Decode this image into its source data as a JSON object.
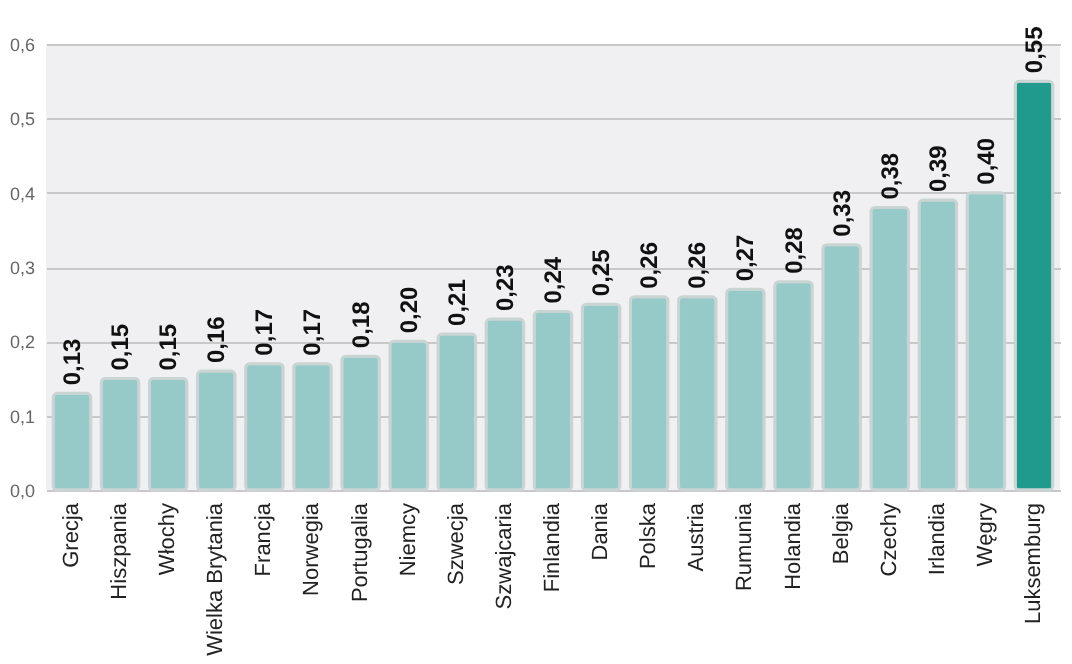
{
  "chart_data": {
    "type": "bar",
    "categories": [
      "Grecja",
      "Hiszpania",
      "Włochy",
      "Wielka Brytania",
      "Francja",
      "Norwegia",
      "Portugalia",
      "Niemcy",
      "Szwecja",
      "Szwajcaria",
      "Finlandia",
      "Dania",
      "Polska",
      "Austria",
      "Rumunia",
      "Holandia",
      "Belgia",
      "Czechy",
      "Irlandia",
      "Węgry",
      "Luksemburg"
    ],
    "values": [
      0.13,
      0.15,
      0.15,
      0.16,
      0.17,
      0.17,
      0.18,
      0.2,
      0.21,
      0.23,
      0.24,
      0.25,
      0.26,
      0.26,
      0.27,
      0.28,
      0.33,
      0.38,
      0.39,
      0.4,
      0.55
    ],
    "colors": [
      "#96cac8",
      "#96cac8",
      "#96cac8",
      "#96cac8",
      "#96cac8",
      "#96cac8",
      "#96cac8",
      "#96cac8",
      "#96cac8",
      "#96cac8",
      "#96cac8",
      "#96cac8",
      "#96cac8",
      "#96cac8",
      "#96cac8",
      "#96cac8",
      "#96cac8",
      "#96cac8",
      "#96cac8",
      "#96cac8",
      "#1f9a8c"
    ],
    "value_labels": [
      "0,13",
      "0,15",
      "0,15",
      "0,16",
      "0,17",
      "0,17",
      "0,18",
      "0,20",
      "0,21",
      "0,23",
      "0,24",
      "0,25",
      "0,26",
      "0,26",
      "0,27",
      "0,28",
      "0,33",
      "0,38",
      "0,39",
      "0,40",
      "0,55"
    ],
    "ylim": [
      0,
      0.6
    ],
    "yticks": [
      {
        "value": 0,
        "label": "0,0"
      },
      {
        "value": 0.1,
        "label": "0,1"
      },
      {
        "value": 0.2,
        "label": "0,2"
      },
      {
        "value": 0.3,
        "label": "0,3"
      },
      {
        "value": 0.4,
        "label": "0,4"
      },
      {
        "value": 0.5,
        "label": "0,5"
      },
      {
        "value": 0.6,
        "label": "0,6"
      }
    ],
    "grid": "y"
  }
}
